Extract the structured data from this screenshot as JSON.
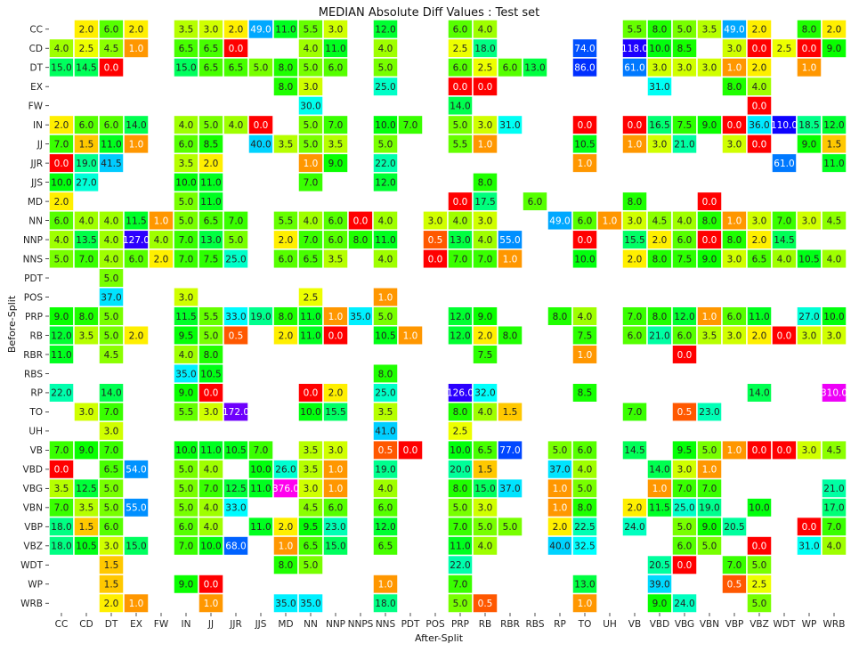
{
  "chart_data": {
    "type": "heatmap",
    "title": "MEDIAN Absolute Diff Values : Test set",
    "xlabel": "After-Split",
    "ylabel": "Before-Split",
    "grid": false,
    "legend": "none",
    "x_categories": [
      "CC",
      "CD",
      "DT",
      "EX",
      "FW",
      "IN",
      "JJ",
      "JJR",
      "JJS",
      "MD",
      "NN",
      "NNP",
      "NNPS",
      "NNS",
      "PDT",
      "POS",
      "PRP",
      "RB",
      "RBR",
      "RBS",
      "RP",
      "TO",
      "UH",
      "VB",
      "VBD",
      "VBG",
      "VBN",
      "VBP",
      "VBZ",
      "WDT",
      "WP",
      "WRB"
    ],
    "y_categories": [
      "CC",
      "CD",
      "DT",
      "EX",
      "FW",
      "IN",
      "JJ",
      "JJR",
      "JJS",
      "MD",
      "NN",
      "NNP",
      "NNS",
      "PDT",
      "POS",
      "PRP",
      "RB",
      "RBR",
      "RBS",
      "RP",
      "TO",
      "UH",
      "VB",
      "VBD",
      "VBG",
      "VBN",
      "VBP",
      "VBZ",
      "WDT",
      "WP",
      "WRB"
    ],
    "values": [
      [
        null,
        2.0,
        6.0,
        2.0,
        null,
        3.5,
        3.0,
        2.0,
        49.0,
        11.0,
        5.5,
        3.0,
        null,
        12.0,
        null,
        null,
        6.0,
        4.0,
        null,
        null,
        null,
        null,
        null,
        5.5,
        8.0,
        5.0,
        3.5,
        49.0,
        2.0,
        null,
        8.0,
        2.0
      ],
      [
        4.0,
        2.5,
        4.5,
        1.0,
        null,
        6.5,
        6.5,
        0.0,
        null,
        null,
        4.0,
        11.0,
        null,
        4.0,
        null,
        null,
        2.5,
        18.0,
        null,
        null,
        null,
        74.0,
        null,
        118.0,
        10.0,
        8.5,
        null,
        3.0,
        0.0,
        2.5,
        0.0,
        9.0
      ],
      [
        15.0,
        14.5,
        0.0,
        null,
        null,
        15.0,
        6.5,
        6.5,
        5.0,
        8.0,
        5.0,
        6.0,
        null,
        5.0,
        null,
        null,
        6.0,
        2.5,
        6.0,
        13.0,
        null,
        86.0,
        null,
        61.0,
        3.0,
        3.0,
        3.0,
        1.0,
        2.0,
        null,
        1.0,
        null
      ],
      [
        null,
        null,
        null,
        null,
        null,
        null,
        null,
        null,
        null,
        8.0,
        3.0,
        null,
        null,
        25.0,
        null,
        null,
        0.0,
        0.0,
        null,
        null,
        null,
        null,
        null,
        null,
        31.0,
        null,
        null,
        8.0,
        4.0,
        null,
        null,
        null
      ],
      [
        null,
        null,
        null,
        null,
        null,
        null,
        null,
        null,
        null,
        null,
        30.0,
        null,
        null,
        null,
        null,
        null,
        14.0,
        null,
        null,
        null,
        null,
        null,
        null,
        null,
        null,
        null,
        null,
        null,
        0.0,
        null,
        null,
        null
      ],
      [
        2.0,
        6.0,
        6.0,
        14.0,
        null,
        4.0,
        5.0,
        4.0,
        0.0,
        null,
        5.0,
        7.0,
        null,
        10.0,
        7.0,
        null,
        5.0,
        3.0,
        31.0,
        null,
        null,
        0.0,
        null,
        0.0,
        16.5,
        7.5,
        9.0,
        0.0,
        36.0,
        110.0,
        18.5,
        12.0
      ],
      [
        7.0,
        1.5,
        11.0,
        1.0,
        null,
        6.0,
        8.5,
        null,
        40.0,
        3.5,
        5.0,
        3.5,
        null,
        5.0,
        null,
        null,
        5.5,
        1.0,
        null,
        null,
        null,
        10.5,
        null,
        1.0,
        3.0,
        21.0,
        null,
        3.0,
        0.0,
        null,
        9.0,
        1.5
      ],
      [
        0.0,
        19.0,
        41.5,
        null,
        null,
        3.5,
        2.0,
        null,
        null,
        null,
        1.0,
        9.0,
        null,
        22.0,
        null,
        null,
        null,
        null,
        null,
        null,
        null,
        1.0,
        null,
        null,
        null,
        null,
        null,
        null,
        null,
        61.0,
        null,
        11.0
      ],
      [
        10.0,
        27.0,
        null,
        null,
        null,
        10.0,
        11.0,
        null,
        null,
        null,
        7.0,
        null,
        null,
        12.0,
        null,
        null,
        null,
        8.0,
        null,
        null,
        null,
        null,
        null,
        null,
        null,
        null,
        null,
        null,
        null,
        null,
        null,
        null
      ],
      [
        2.0,
        null,
        null,
        null,
        null,
        5.0,
        11.0,
        null,
        null,
        null,
        null,
        null,
        null,
        null,
        null,
        null,
        0.0,
        17.5,
        null,
        6.0,
        null,
        null,
        null,
        8.0,
        null,
        null,
        0.0,
        null,
        null,
        null,
        null,
        null
      ],
      [
        6.0,
        4.0,
        4.0,
        11.5,
        1.0,
        5.0,
        6.5,
        7.0,
        null,
        5.5,
        4.0,
        6.0,
        0.0,
        4.0,
        null,
        3.0,
        4.0,
        3.0,
        null,
        null,
        49.0,
        6.0,
        1.0,
        3.0,
        4.5,
        4.0,
        8.0,
        1.0,
        3.0,
        7.0,
        3.0,
        4.5
      ],
      [
        4.0,
        13.5,
        4.0,
        127.0,
        4.0,
        7.0,
        13.0,
        5.0,
        null,
        2.0,
        7.0,
        6.0,
        8.0,
        11.0,
        null,
        0.5,
        13.0,
        4.0,
        55.0,
        null,
        null,
        0.0,
        null,
        15.5,
        2.0,
        6.0,
        0.0,
        8.0,
        2.0,
        14.5,
        null,
        null
      ],
      [
        5.0,
        7.0,
        4.0,
        6.0,
        2.0,
        7.0,
        7.5,
        25.0,
        null,
        6.0,
        6.5,
        3.5,
        null,
        4.0,
        null,
        0.0,
        7.0,
        7.0,
        1.0,
        null,
        null,
        10.0,
        null,
        2.0,
        8.0,
        7.5,
        9.0,
        3.0,
        6.5,
        4.0,
        10.5,
        4.0
      ],
      [
        null,
        null,
        5.0,
        null,
        null,
        null,
        null,
        null,
        null,
        null,
        null,
        null,
        null,
        null,
        null,
        null,
        null,
        null,
        null,
        null,
        null,
        null,
        null,
        null,
        null,
        null,
        null,
        null,
        null,
        null,
        null,
        null
      ],
      [
        null,
        null,
        37.0,
        null,
        null,
        3.0,
        null,
        null,
        null,
        null,
        2.5,
        null,
        null,
        1.0,
        null,
        null,
        null,
        null,
        null,
        null,
        null,
        null,
        null,
        null,
        null,
        null,
        null,
        null,
        null,
        null,
        null,
        null
      ],
      [
        9.0,
        8.0,
        5.0,
        null,
        null,
        11.5,
        5.5,
        33.0,
        19.0,
        8.0,
        11.0,
        1.0,
        35.0,
        5.0,
        null,
        null,
        12.0,
        9.0,
        null,
        null,
        8.0,
        4.0,
        null,
        7.0,
        8.0,
        12.0,
        1.0,
        6.0,
        11.0,
        null,
        27.0,
        10.0
      ],
      [
        12.0,
        3.5,
        5.0,
        2.0,
        null,
        9.5,
        5.0,
        0.5,
        null,
        2.0,
        11.0,
        0.0,
        null,
        10.5,
        1.0,
        null,
        12.0,
        2.0,
        8.0,
        null,
        null,
        7.5,
        null,
        6.0,
        21.0,
        6.0,
        3.5,
        3.0,
        2.0,
        0.0,
        3.0,
        3.0
      ],
      [
        11.0,
        null,
        4.5,
        null,
        null,
        4.0,
        8.0,
        null,
        null,
        null,
        null,
        null,
        null,
        null,
        null,
        null,
        null,
        7.5,
        null,
        null,
        null,
        1.0,
        null,
        null,
        null,
        0.0,
        null,
        null,
        null,
        null,
        null,
        null
      ],
      [
        null,
        null,
        null,
        null,
        null,
        35.0,
        10.5,
        null,
        null,
        null,
        null,
        null,
        null,
        8.0,
        null,
        null,
        null,
        null,
        null,
        null,
        null,
        null,
        null,
        null,
        null,
        null,
        null,
        null,
        null,
        null,
        null,
        null
      ],
      [
        22.0,
        null,
        14.0,
        null,
        null,
        9.0,
        0.0,
        null,
        null,
        null,
        0.0,
        2.0,
        null,
        25.0,
        null,
        null,
        126.0,
        32.0,
        null,
        null,
        null,
        8.5,
        null,
        null,
        null,
        null,
        null,
        null,
        14.0,
        null,
        null,
        310.0
      ],
      [
        null,
        3.0,
        7.0,
        null,
        null,
        5.5,
        3.0,
        172.0,
        null,
        null,
        10.0,
        15.5,
        null,
        3.5,
        null,
        null,
        8.0,
        4.0,
        1.5,
        null,
        null,
        null,
        null,
        7.0,
        null,
        0.5,
        23.0,
        null,
        null,
        null,
        null,
        null
      ],
      [
        null,
        null,
        3.0,
        null,
        null,
        null,
        null,
        null,
        null,
        null,
        null,
        null,
        null,
        41.0,
        null,
        null,
        2.5,
        null,
        null,
        null,
        null,
        null,
        null,
        null,
        null,
        null,
        null,
        null,
        null,
        null,
        null,
        null
      ],
      [
        7.0,
        9.0,
        7.0,
        null,
        null,
        10.0,
        11.0,
        10.5,
        7.0,
        null,
        3.5,
        3.0,
        null,
        0.5,
        0.0,
        null,
        10.0,
        6.5,
        77.0,
        null,
        5.0,
        6.0,
        null,
        14.5,
        null,
        9.5,
        5.0,
        1.0,
        0.0,
        0.0,
        3.0,
        4.5
      ],
      [
        0.0,
        null,
        6.5,
        54.0,
        null,
        5.0,
        4.0,
        null,
        10.0,
        26.0,
        3.5,
        1.0,
        null,
        19.0,
        null,
        null,
        20.0,
        1.5,
        null,
        null,
        37.0,
        4.0,
        null,
        null,
        14.0,
        3.0,
        1.0,
        null,
        null,
        null,
        null,
        null
      ],
      [
        3.5,
        12.5,
        5.0,
        null,
        null,
        5.0,
        7.0,
        12.5,
        11.0,
        376.0,
        3.0,
        1.0,
        null,
        4.0,
        null,
        null,
        8.0,
        15.0,
        37.0,
        null,
        1.0,
        5.0,
        null,
        null,
        1.0,
        7.0,
        7.0,
        null,
        null,
        null,
        null,
        21.0
      ],
      [
        7.0,
        3.5,
        5.0,
        55.0,
        null,
        5.0,
        4.0,
        33.0,
        null,
        null,
        4.5,
        6.0,
        null,
        6.0,
        null,
        null,
        5.0,
        3.0,
        null,
        null,
        1.0,
        8.0,
        null,
        2.0,
        11.5,
        25.0,
        19.0,
        null,
        10.0,
        null,
        null,
        17.0
      ],
      [
        18.0,
        1.5,
        6.0,
        null,
        null,
        6.0,
        4.0,
        null,
        11.0,
        2.0,
        9.5,
        23.0,
        null,
        12.0,
        null,
        null,
        7.0,
        5.0,
        5.0,
        null,
        2.0,
        22.5,
        null,
        24.0,
        null,
        5.0,
        9.0,
        20.5,
        null,
        null,
        0.0,
        7.0
      ],
      [
        18.0,
        10.5,
        3.0,
        15.0,
        null,
        7.0,
        10.0,
        68.0,
        null,
        1.0,
        6.5,
        15.0,
        null,
        6.5,
        null,
        null,
        11.0,
        4.0,
        null,
        null,
        40.0,
        32.5,
        null,
        null,
        null,
        6.0,
        5.0,
        null,
        0.0,
        null,
        31.0,
        4.0
      ],
      [
        null,
        null,
        1.5,
        null,
        null,
        null,
        null,
        null,
        null,
        8.0,
        5.0,
        null,
        null,
        null,
        null,
        null,
        22.0,
        null,
        null,
        null,
        null,
        null,
        null,
        null,
        20.5,
        0.0,
        null,
        7.0,
        5.0,
        null,
        null,
        null
      ],
      [
        null,
        null,
        1.5,
        null,
        null,
        9.0,
        0.0,
        null,
        null,
        null,
        null,
        null,
        null,
        1.0,
        null,
        null,
        7.0,
        null,
        null,
        null,
        null,
        13.0,
        null,
        null,
        39.0,
        null,
        null,
        0.5,
        2.5,
        null,
        null,
        null
      ],
      [
        null,
        null,
        2.0,
        1.0,
        null,
        null,
        1.0,
        null,
        null,
        35.0,
        35.0,
        null,
        null,
        18.0,
        null,
        null,
        5.0,
        0.5,
        null,
        null,
        null,
        1.0,
        null,
        null,
        9.0,
        24.0,
        null,
        null,
        5.0,
        null,
        null,
        null
      ]
    ]
  }
}
